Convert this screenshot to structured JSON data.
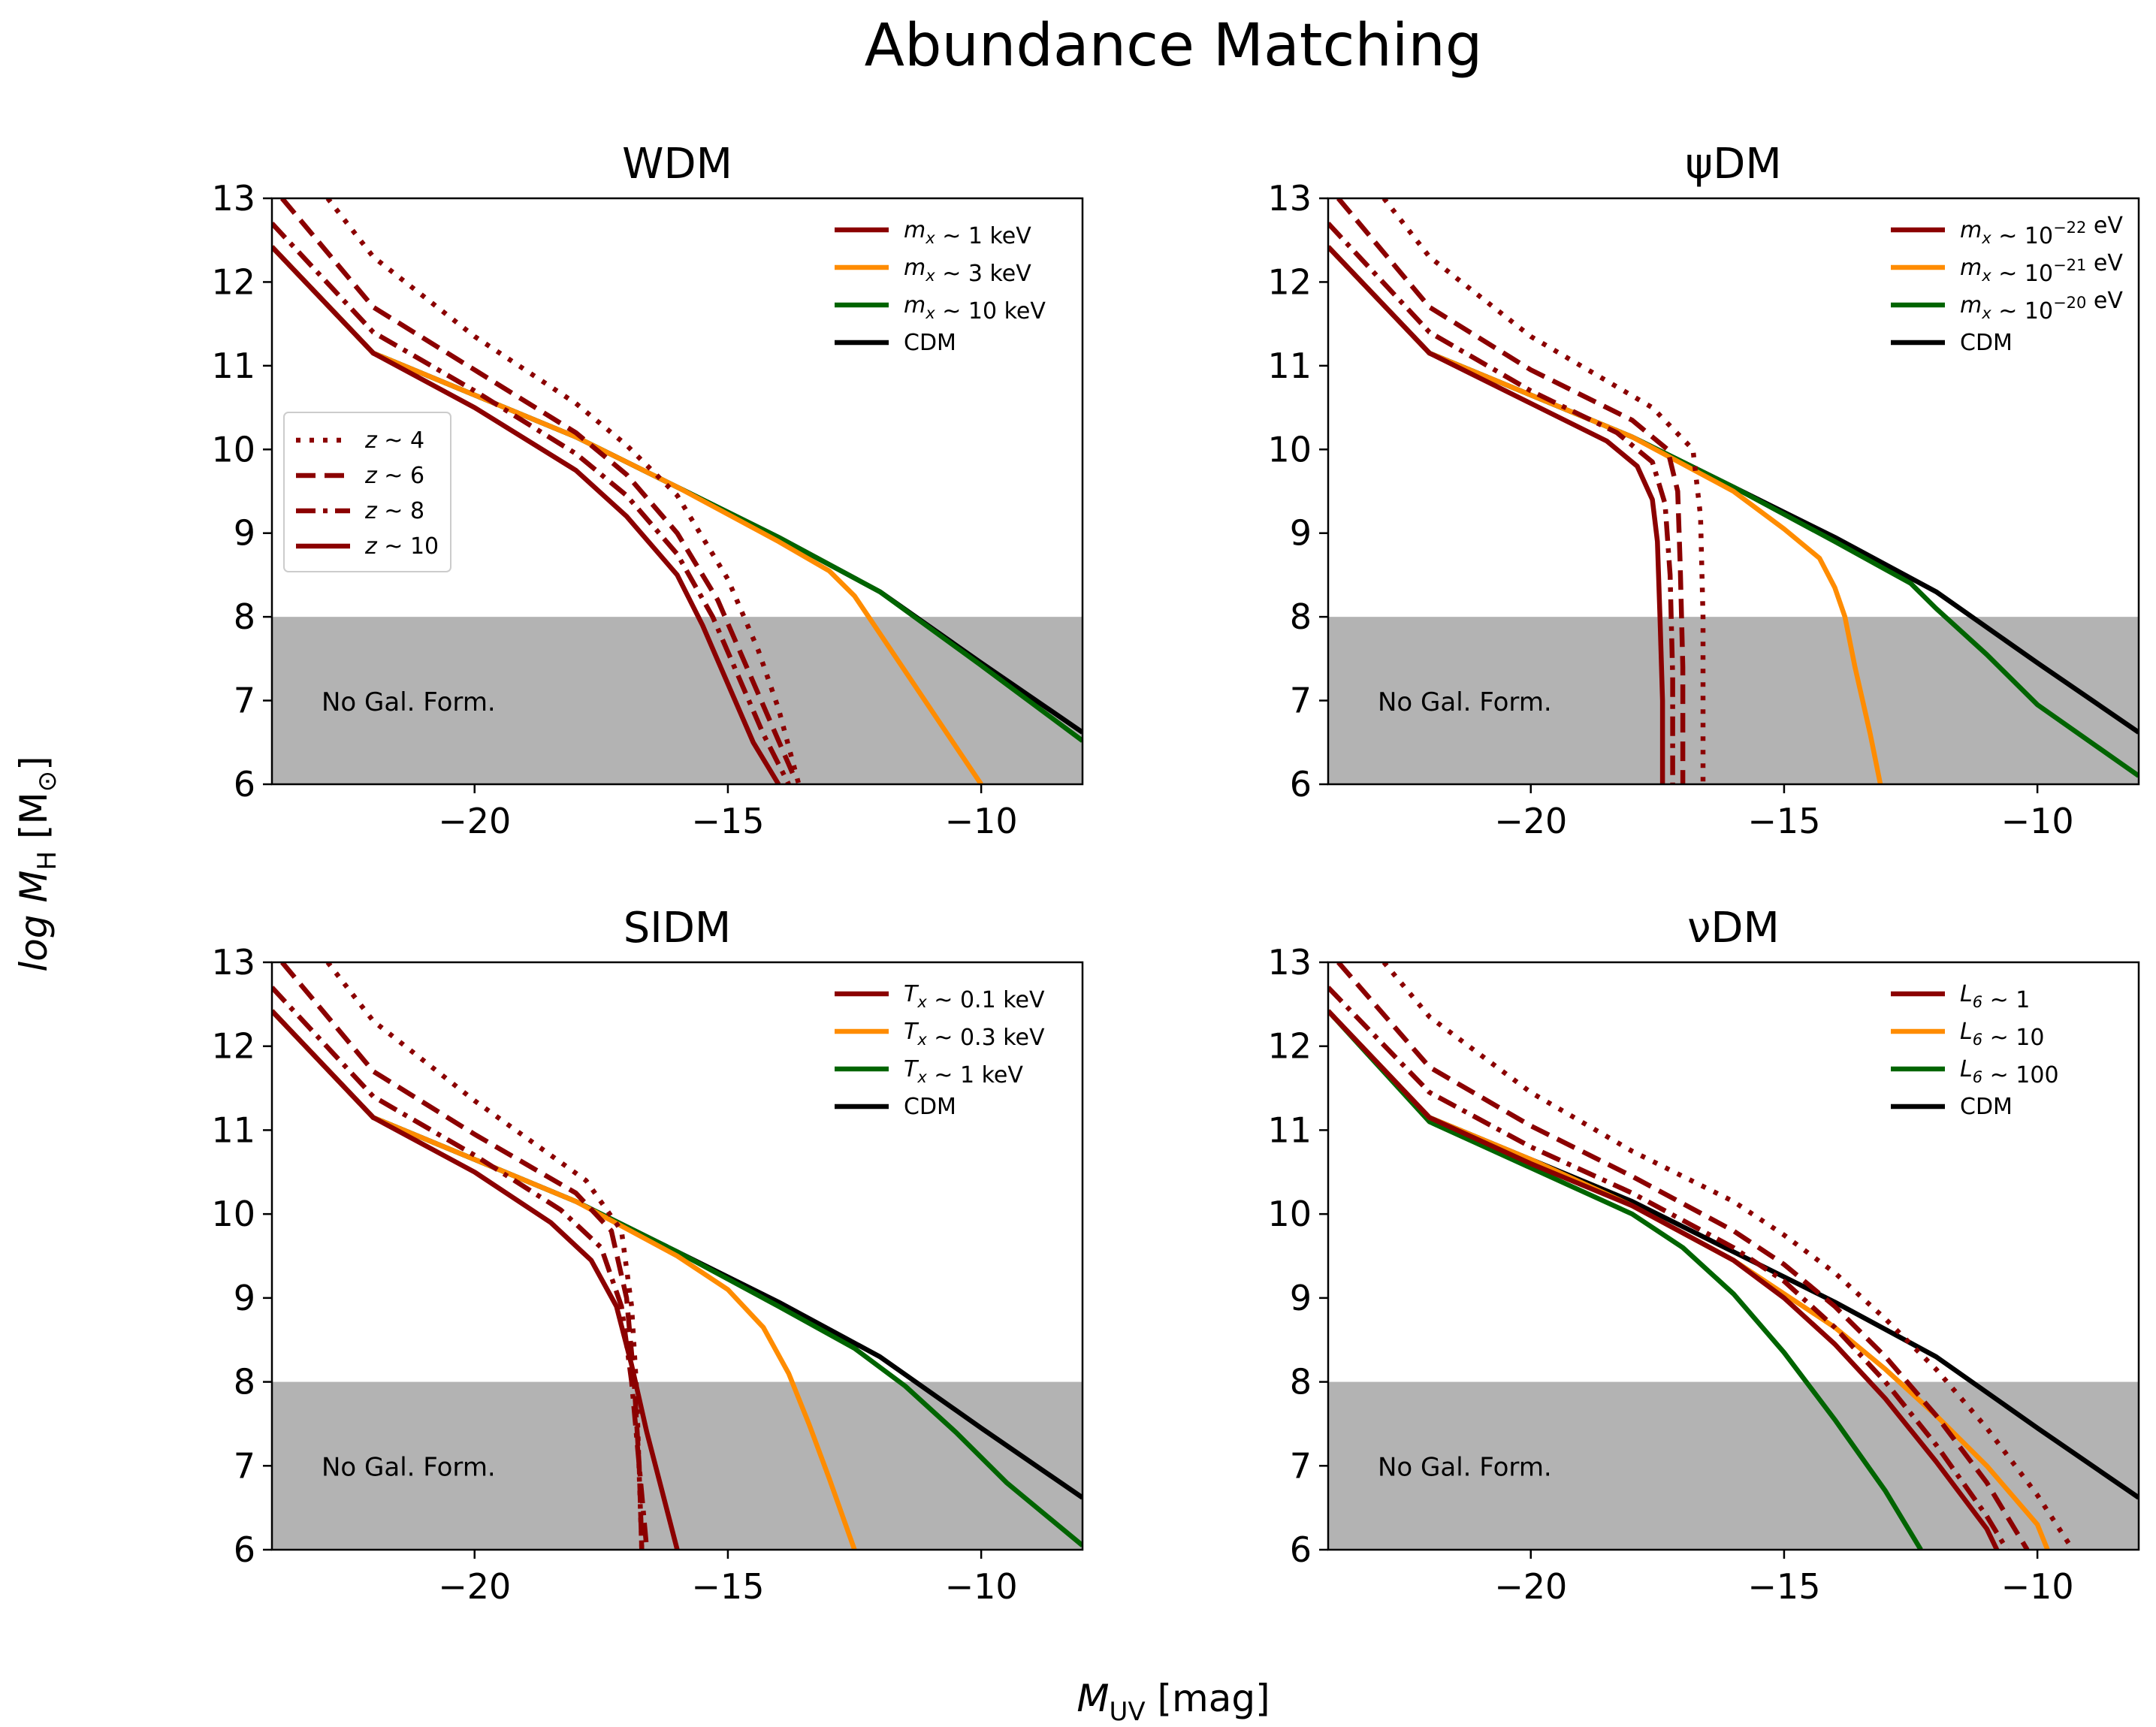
{
  "figure": {
    "suptitle": "Abundance Matching",
    "ylabel": "log M",
    "ylabel_sub": "H",
    "ylabel_unit": "[M",
    "ylabel_unit_sub": "⊙",
    "ylabel_unit_close": "]",
    "xlabel": "M",
    "xlabel_sub": "UV",
    "xlabel_unit": " [mag]",
    "shade_label": "No Gal. Form."
  },
  "colors": {
    "model_1": "#8b0000",
    "model_2": "#ff8c00",
    "model_3": "#006400",
    "cdm": "#000000",
    "shade": "#b3b3b3"
  },
  "chart_data": [
    {
      "type": "line",
      "title": "WDM",
      "xlim": [
        -24,
        -8
      ],
      "ylim": [
        6,
        13
      ],
      "xticks": [
        -20,
        -15,
        -10
      ],
      "yticks": [
        6,
        7,
        8,
        9,
        10,
        11,
        12,
        13
      ],
      "xlabel": "M_UV [mag]",
      "ylabel": "log M_H [M_sun]",
      "shade_below": 8,
      "legend": [
        {
          "prefix": "m",
          "sub": "x",
          "mid": " ~ 1 keV",
          "sup": "",
          "suffix": ""
        },
        {
          "prefix": "m",
          "sub": "x",
          "mid": " ~ 3 keV",
          "sup": "",
          "suffix": ""
        },
        {
          "prefix": "m",
          "sub": "x",
          "mid": " ~ 10 keV",
          "sup": "",
          "suffix": ""
        },
        {
          "prefix": "CDM",
          "sub": "",
          "mid": "",
          "sup": "",
          "suffix": ""
        }
      ],
      "redshift_legend": [
        "z ~ 4",
        "z ~ 6",
        "z ~ 8",
        "z ~ 10"
      ],
      "series": [
        {
          "name": "CDM",
          "color": "cdm",
          "style": "solid",
          "x": [
            -24,
            -22,
            -20,
            -18,
            -16,
            -14,
            -12,
            -10,
            -8
          ],
          "y": [
            12.42,
            11.15,
            10.65,
            10.15,
            9.55,
            8.95,
            8.3,
            7.45,
            6.62
          ]
        },
        {
          "name": "mx~10 keV",
          "color": "model_3",
          "style": "solid",
          "x": [
            -24,
            -22,
            -20,
            -18,
            -16,
            -14,
            -12,
            -10,
            -8
          ],
          "y": [
            12.42,
            11.15,
            10.65,
            10.15,
            9.55,
            8.95,
            8.3,
            7.42,
            6.52
          ]
        },
        {
          "name": "mx~3 keV",
          "color": "model_2",
          "style": "solid",
          "x": [
            -24,
            -22,
            -20,
            -18,
            -16,
            -14,
            -13,
            -12.5,
            -12,
            -11,
            -10
          ],
          "y": [
            12.42,
            11.15,
            10.65,
            10.15,
            9.55,
            8.9,
            8.55,
            8.25,
            7.8,
            6.9,
            6.0
          ]
        },
        {
          "name": "mx~1 keV z~10",
          "color": "model_1",
          "style": "solid",
          "x": [
            -24,
            -22,
            -20,
            -18,
            -17,
            -16,
            -15.5,
            -15,
            -14.5,
            -14
          ],
          "y": [
            12.42,
            11.15,
            10.5,
            9.75,
            9.2,
            8.5,
            7.9,
            7.2,
            6.5,
            6.0
          ]
        },
        {
          "name": "mx~1 keV z~8",
          "color": "model_1",
          "style": "dashdot",
          "x": [
            -24,
            -22,
            -20,
            -18,
            -17,
            -16,
            -15.3,
            -14.8,
            -14.3,
            -13.8
          ],
          "y": [
            12.7,
            11.4,
            10.7,
            9.95,
            9.45,
            8.75,
            8.0,
            7.3,
            6.6,
            6.0
          ]
        },
        {
          "name": "mx~1 keV z~6",
          "color": "model_1",
          "style": "dashed",
          "x": [
            -23.8,
            -22,
            -20,
            -18,
            -17,
            -16,
            -15.2,
            -14.7,
            -14.2,
            -13.7
          ],
          "y": [
            13.0,
            11.7,
            10.95,
            10.2,
            9.7,
            9.0,
            8.2,
            7.5,
            6.8,
            6.1
          ]
        },
        {
          "name": "mx~1 keV z~4",
          "color": "model_1",
          "style": "dotted",
          "x": [
            -22.9,
            -22,
            -20,
            -18,
            -17,
            -16,
            -15,
            -14.4,
            -14,
            -13.6
          ],
          "y": [
            13.0,
            12.3,
            11.35,
            10.55,
            10.05,
            9.45,
            8.45,
            7.6,
            6.9,
            6.0
          ]
        }
      ]
    },
    {
      "type": "line",
      "title": "ψDM",
      "xlim": [
        -24,
        -8
      ],
      "ylim": [
        6,
        13
      ],
      "xticks": [
        -20,
        -15,
        -10
      ],
      "yticks": [
        6,
        7,
        8,
        9,
        10,
        11,
        12,
        13
      ],
      "shade_below": 8,
      "legend": [
        {
          "prefix": "m",
          "sub": "x",
          "mid": " ~ 10",
          "sup": "−22",
          "suffix": " eV"
        },
        {
          "prefix": "m",
          "sub": "x",
          "mid": " ~ 10",
          "sup": "−21",
          "suffix": " eV"
        },
        {
          "prefix": "m",
          "sub": "x",
          "mid": " ~ 10",
          "sup": "−20",
          "suffix": " eV"
        },
        {
          "prefix": "CDM",
          "sub": "",
          "mid": "",
          "sup": "",
          "suffix": ""
        }
      ],
      "series": [
        {
          "name": "CDM",
          "color": "cdm",
          "style": "solid",
          "x": [
            -24,
            -22,
            -20,
            -18,
            -16,
            -14,
            -12,
            -10,
            -8
          ],
          "y": [
            12.42,
            11.15,
            10.65,
            10.15,
            9.55,
            8.95,
            8.3,
            7.45,
            6.62
          ]
        },
        {
          "name": "mx~1e-20 eV",
          "color": "model_3",
          "style": "solid",
          "x": [
            -24,
            -22,
            -20,
            -18,
            -16,
            -14,
            -12.5,
            -12,
            -11,
            -10,
            -8
          ],
          "y": [
            12.42,
            11.15,
            10.65,
            10.15,
            9.55,
            8.9,
            8.4,
            8.1,
            7.55,
            6.95,
            6.1
          ]
        },
        {
          "name": "mx~1e-21 eV",
          "color": "model_2",
          "style": "solid",
          "x": [
            -24,
            -22,
            -20,
            -18,
            -16,
            -15,
            -14.3,
            -14,
            -13.8,
            -13.6,
            -13.3,
            -13.1
          ],
          "y": [
            12.42,
            11.15,
            10.65,
            10.15,
            9.5,
            9.05,
            8.7,
            8.35,
            8.0,
            7.4,
            6.6,
            6.0
          ]
        },
        {
          "name": "mx~1e-22 eV z~10",
          "color": "model_1",
          "style": "solid",
          "x": [
            -24,
            -22,
            -20,
            -18.5,
            -17.9,
            -17.6,
            -17.5,
            -17.45,
            -17.4,
            -17.4
          ],
          "y": [
            12.42,
            11.15,
            10.55,
            10.1,
            9.8,
            9.4,
            8.9,
            8.0,
            7.0,
            6.0
          ]
        },
        {
          "name": "mx~1e-22 eV z~8",
          "color": "model_1",
          "style": "dashdot",
          "x": [
            -24,
            -22,
            -20,
            -18.3,
            -17.6,
            -17.35,
            -17.25,
            -17.2,
            -17.2
          ],
          "y": [
            12.7,
            11.4,
            10.7,
            10.2,
            9.85,
            9.35,
            8.5,
            7.3,
            6.0
          ]
        },
        {
          "name": "mx~1e-22 eV z~6",
          "color": "model_1",
          "style": "dashed",
          "x": [
            -23.8,
            -22,
            -20,
            -18.0,
            -17.3,
            -17.1,
            -17.05,
            -17.0,
            -17.0
          ],
          "y": [
            13.0,
            11.7,
            10.95,
            10.35,
            10.0,
            9.5,
            8.6,
            7.4,
            6.0
          ]
        },
        {
          "name": "mx~1e-22 eV z~4",
          "color": "model_1",
          "style": "dotted",
          "x": [
            -22.9,
            -22,
            -20,
            -17.6,
            -16.8,
            -16.65,
            -16.6,
            -16.6
          ],
          "y": [
            13.0,
            12.3,
            11.35,
            10.5,
            10.0,
            9.2,
            8.0,
            6.0
          ]
        }
      ]
    },
    {
      "type": "line",
      "title": "SIDM",
      "xlim": [
        -24,
        -8
      ],
      "ylim": [
        6,
        13
      ],
      "xticks": [
        -20,
        -15,
        -10
      ],
      "yticks": [
        6,
        7,
        8,
        9,
        10,
        11,
        12,
        13
      ],
      "shade_below": 8,
      "legend": [
        {
          "prefix": "T",
          "sub": "x",
          "mid": " ~ 0.1 keV",
          "sup": "",
          "suffix": ""
        },
        {
          "prefix": "T",
          "sub": "x",
          "mid": " ~ 0.3 keV",
          "sup": "",
          "suffix": ""
        },
        {
          "prefix": "T",
          "sub": "x",
          "mid": " ~ 1 keV",
          "sup": "",
          "suffix": ""
        },
        {
          "prefix": "CDM",
          "sub": "",
          "mid": "",
          "sup": "",
          "suffix": ""
        }
      ],
      "series": [
        {
          "name": "CDM",
          "color": "cdm",
          "style": "solid",
          "x": [
            -24,
            -22,
            -20,
            -18,
            -16,
            -14,
            -12,
            -10,
            -8
          ],
          "y": [
            12.42,
            11.15,
            10.65,
            10.15,
            9.55,
            8.95,
            8.3,
            7.45,
            6.62
          ]
        },
        {
          "name": "Tx~1 keV",
          "color": "model_3",
          "style": "solid",
          "x": [
            -24,
            -22,
            -20,
            -18,
            -16,
            -14,
            -12.5,
            -11.5,
            -10.5,
            -9.5,
            -8
          ],
          "y": [
            12.42,
            11.15,
            10.65,
            10.15,
            9.55,
            8.9,
            8.4,
            7.95,
            7.4,
            6.8,
            6.05
          ]
        },
        {
          "name": "Tx~0.3 keV",
          "color": "model_2",
          "style": "solid",
          "x": [
            -24,
            -22,
            -20,
            -18,
            -16,
            -15,
            -14.3,
            -13.8,
            -13.4,
            -13,
            -12.5
          ],
          "y": [
            12.42,
            11.15,
            10.65,
            10.15,
            9.5,
            9.1,
            8.65,
            8.1,
            7.5,
            6.85,
            6.0
          ]
        },
        {
          "name": "Tx~0.1 keV z~10",
          "color": "model_1",
          "style": "solid",
          "x": [
            -24,
            -22,
            -20,
            -18.5,
            -17.7,
            -17.2,
            -16.9,
            -16.6,
            -16.3,
            -16.0
          ],
          "y": [
            12.42,
            11.15,
            10.5,
            9.9,
            9.45,
            8.9,
            8.2,
            7.4,
            6.7,
            6.0
          ]
        },
        {
          "name": "Tx~0.1 keV z~8",
          "color": "model_1",
          "style": "dashdot",
          "x": [
            -24,
            -22,
            -20,
            -18.3,
            -17.5,
            -17.1,
            -16.9,
            -16.75,
            -16.6
          ],
          "y": [
            12.7,
            11.4,
            10.7,
            10.05,
            9.6,
            8.9,
            8.0,
            7.0,
            6.0
          ]
        },
        {
          "name": "Tx~0.1 keV z~6",
          "color": "model_1",
          "style": "dashed",
          "x": [
            -23.8,
            -22,
            -20,
            -18.0,
            -17.3,
            -17.0,
            -16.85,
            -16.75,
            -16.7
          ],
          "y": [
            13.0,
            11.7,
            10.95,
            10.25,
            9.8,
            9.0,
            8.0,
            7.0,
            6.0
          ]
        },
        {
          "name": "Tx~0.1 keV z~4",
          "color": "model_1",
          "style": "dotted",
          "x": [
            -22.9,
            -22,
            -20,
            -17.8,
            -17.1,
            -16.9,
            -16.8,
            -16.75,
            -16.7
          ],
          "y": [
            13.0,
            12.3,
            11.35,
            10.4,
            9.8,
            8.9,
            7.9,
            6.9,
            6.0
          ]
        }
      ]
    },
    {
      "type": "line",
      "title": "νDM",
      "xlim": [
        -24,
        -8
      ],
      "ylim": [
        6,
        13
      ],
      "xticks": [
        -20,
        -15,
        -10
      ],
      "yticks": [
        6,
        7,
        8,
        9,
        10,
        11,
        12,
        13
      ],
      "shade_below": 8,
      "legend": [
        {
          "prefix": "L",
          "sub": "6",
          "mid": " ~ 1",
          "sup": "",
          "suffix": ""
        },
        {
          "prefix": "L",
          "sub": "6",
          "mid": " ~ 10",
          "sup": "",
          "suffix": ""
        },
        {
          "prefix": "L",
          "sub": "6",
          "mid": " ~ 100",
          "sup": "",
          "suffix": ""
        },
        {
          "prefix": "CDM",
          "sub": "",
          "mid": "",
          "sup": "",
          "suffix": ""
        }
      ],
      "series": [
        {
          "name": "CDM",
          "color": "cdm",
          "style": "solid",
          "x": [
            -24,
            -22,
            -20,
            -18,
            -16,
            -14,
            -12,
            -10,
            -8
          ],
          "y": [
            12.42,
            11.15,
            10.65,
            10.15,
            9.55,
            8.95,
            8.3,
            7.45,
            6.62
          ]
        },
        {
          "name": "L6~100",
          "color": "model_3",
          "style": "solid",
          "x": [
            -24,
            -22,
            -20,
            -18,
            -17,
            -16,
            -15,
            -14,
            -13,
            -12.3
          ],
          "y": [
            12.42,
            11.1,
            10.55,
            10.0,
            9.6,
            9.05,
            8.35,
            7.55,
            6.7,
            6.0
          ]
        },
        {
          "name": "L6~10",
          "color": "model_2",
          "style": "solid",
          "x": [
            -24,
            -22,
            -20,
            -18,
            -16,
            -15,
            -14,
            -13,
            -12,
            -11,
            -10,
            -9.8
          ],
          "y": [
            12.42,
            11.15,
            10.65,
            10.1,
            9.45,
            9.05,
            8.65,
            8.15,
            7.6,
            7.0,
            6.3,
            6.0
          ]
        },
        {
          "name": "L6~1 z~10",
          "color": "model_1",
          "style": "solid",
          "x": [
            -24,
            -22,
            -20,
            -18,
            -16,
            -15,
            -14,
            -13,
            -12,
            -11,
            -10.8
          ],
          "y": [
            12.42,
            11.15,
            10.6,
            10.1,
            9.45,
            9.0,
            8.45,
            7.8,
            7.05,
            6.25,
            6.0
          ]
        },
        {
          "name": "L6~1 z~8",
          "color": "model_1",
          "style": "dashdot",
          "x": [
            -24,
            -22,
            -20,
            -18,
            -16,
            -15,
            -14,
            -13,
            -12,
            -11,
            -10.6
          ],
          "y": [
            12.7,
            11.45,
            10.8,
            10.25,
            9.6,
            9.2,
            8.65,
            8.0,
            7.25,
            6.4,
            6.0
          ]
        },
        {
          "name": "L6~1 z~6",
          "color": "model_1",
          "style": "dashed",
          "x": [
            -23.8,
            -22,
            -20,
            -18,
            -16,
            -15,
            -14,
            -13,
            -12,
            -11,
            -10.2
          ],
          "y": [
            13.0,
            11.75,
            11.05,
            10.45,
            9.8,
            9.4,
            8.9,
            8.3,
            7.6,
            6.8,
            6.0
          ]
        },
        {
          "name": "L6~1 z~4",
          "color": "model_1",
          "style": "dotted",
          "x": [
            -22.9,
            -22,
            -20,
            -18,
            -16,
            -15,
            -14,
            -13,
            -12,
            -11,
            -10,
            -9.3
          ],
          "y": [
            13.0,
            12.35,
            11.45,
            10.75,
            10.15,
            9.75,
            9.3,
            8.75,
            8.15,
            7.45,
            6.65,
            6.0
          ]
        }
      ]
    }
  ]
}
